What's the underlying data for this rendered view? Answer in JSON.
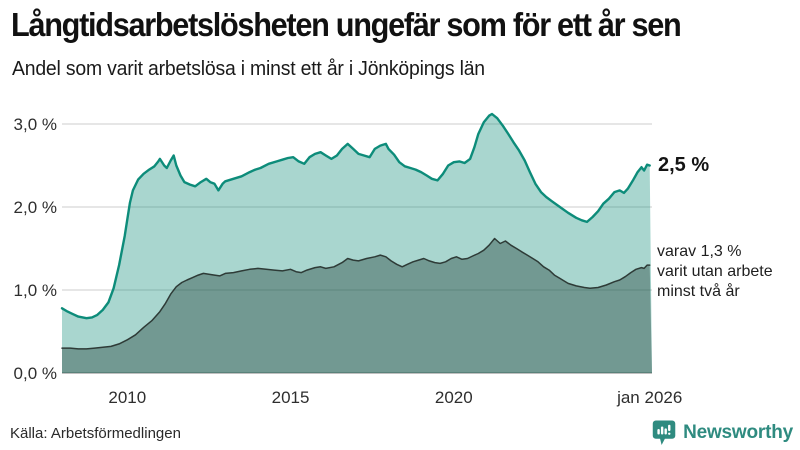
{
  "header": {
    "title": "Långtidsarbetslösheten ungefär som för ett år sen",
    "subtitle": "Andel som varit arbetslösa i minst ett år i Jönköpings län"
  },
  "footer": {
    "source": "Källa: Arbetsförmedlingen",
    "brand": "Newsworthy"
  },
  "colors": {
    "accent_teal": "#0d8c7a",
    "light_area_fill": "rgba(17,140,122,0.36)",
    "dark_area_fill": "rgba(32,63,56,0.40)",
    "dark_line": "#2e3b37",
    "gridline": "#d8d8d8",
    "baseline": "#9b9b9b",
    "tick_text": "#2e2e2e",
    "brand_teal": "#2f8b80"
  },
  "chart_data": {
    "type": "area",
    "title": "Långtidsarbetslösheten ungefär som för ett år sen",
    "subtitle": "Andel som varit arbetslösa i minst ett år i Jönköpings län",
    "unit": "%",
    "xlim": [
      2008,
      2026.05
    ],
    "ylim": [
      0,
      3.2
    ],
    "grid": true,
    "legend_position": "annotations-right",
    "y_ticks": [
      {
        "value": 3.0,
        "label": "3,0 %"
      },
      {
        "value": 2.0,
        "label": "2,0 %"
      },
      {
        "value": 1.0,
        "label": "1,0 %"
      },
      {
        "value": 0.0,
        "label": "0,0 %"
      }
    ],
    "x_ticks": [
      {
        "value": 2010,
        "label": "2010"
      },
      {
        "value": 2015,
        "label": "2015"
      },
      {
        "value": 2020,
        "label": "2020"
      },
      {
        "value": 2026,
        "label": "jan 2026"
      }
    ],
    "annotations": {
      "total_label": "2,5 %",
      "subset_lines": [
        "varav 1,3 %",
        "varit utan arbete",
        "minst två år"
      ]
    },
    "series": [
      {
        "name": "Arbetslösa minst ett år",
        "last_value": 2.5,
        "points": [
          [
            2008.0,
            0.78
          ],
          [
            2008.17,
            0.74
          ],
          [
            2008.33,
            0.71
          ],
          [
            2008.5,
            0.68
          ],
          [
            2008.75,
            0.66
          ],
          [
            2008.92,
            0.67
          ],
          [
            2009.08,
            0.7
          ],
          [
            2009.25,
            0.76
          ],
          [
            2009.42,
            0.85
          ],
          [
            2009.58,
            1.02
          ],
          [
            2009.75,
            1.3
          ],
          [
            2009.92,
            1.65
          ],
          [
            2010.0,
            1.85
          ],
          [
            2010.08,
            2.05
          ],
          [
            2010.17,
            2.2
          ],
          [
            2010.33,
            2.33
          ],
          [
            2010.5,
            2.4
          ],
          [
            2010.67,
            2.45
          ],
          [
            2010.83,
            2.49
          ],
          [
            2010.95,
            2.55
          ],
          [
            2011.0,
            2.58
          ],
          [
            2011.13,
            2.5
          ],
          [
            2011.21,
            2.47
          ],
          [
            2011.33,
            2.56
          ],
          [
            2011.42,
            2.62
          ],
          [
            2011.5,
            2.5
          ],
          [
            2011.63,
            2.38
          ],
          [
            2011.75,
            2.3
          ],
          [
            2011.92,
            2.27
          ],
          [
            2012.08,
            2.25
          ],
          [
            2012.25,
            2.3
          ],
          [
            2012.42,
            2.34
          ],
          [
            2012.54,
            2.3
          ],
          [
            2012.67,
            2.28
          ],
          [
            2012.79,
            2.2
          ],
          [
            2012.92,
            2.28
          ],
          [
            2013.0,
            2.31
          ],
          [
            2013.25,
            2.34
          ],
          [
            2013.5,
            2.37
          ],
          [
            2013.75,
            2.42
          ],
          [
            2013.92,
            2.45
          ],
          [
            2014.08,
            2.47
          ],
          [
            2014.33,
            2.52
          ],
          [
            2014.58,
            2.55
          ],
          [
            2014.75,
            2.57
          ],
          [
            2014.92,
            2.59
          ],
          [
            2015.08,
            2.6
          ],
          [
            2015.25,
            2.55
          ],
          [
            2015.42,
            2.52
          ],
          [
            2015.58,
            2.6
          ],
          [
            2015.75,
            2.64
          ],
          [
            2015.92,
            2.66
          ],
          [
            2016.08,
            2.62
          ],
          [
            2016.25,
            2.58
          ],
          [
            2016.42,
            2.62
          ],
          [
            2016.58,
            2.7
          ],
          [
            2016.75,
            2.76
          ],
          [
            2016.92,
            2.7
          ],
          [
            2017.08,
            2.64
          ],
          [
            2017.25,
            2.62
          ],
          [
            2017.42,
            2.6
          ],
          [
            2017.58,
            2.7
          ],
          [
            2017.75,
            2.74
          ],
          [
            2017.92,
            2.76
          ],
          [
            2018.0,
            2.7
          ],
          [
            2018.17,
            2.63
          ],
          [
            2018.33,
            2.54
          ],
          [
            2018.5,
            2.49
          ],
          [
            2018.67,
            2.47
          ],
          [
            2018.83,
            2.45
          ],
          [
            2019.0,
            2.42
          ],
          [
            2019.17,
            2.38
          ],
          [
            2019.33,
            2.34
          ],
          [
            2019.5,
            2.32
          ],
          [
            2019.67,
            2.4
          ],
          [
            2019.83,
            2.5
          ],
          [
            2020.0,
            2.54
          ],
          [
            2020.17,
            2.55
          ],
          [
            2020.33,
            2.53
          ],
          [
            2020.5,
            2.58
          ],
          [
            2020.63,
            2.72
          ],
          [
            2020.75,
            2.88
          ],
          [
            2020.92,
            3.02
          ],
          [
            2021.08,
            3.1
          ],
          [
            2021.17,
            3.12
          ],
          [
            2021.33,
            3.07
          ],
          [
            2021.5,
            2.98
          ],
          [
            2021.67,
            2.88
          ],
          [
            2021.83,
            2.78
          ],
          [
            2022.0,
            2.68
          ],
          [
            2022.17,
            2.56
          ],
          [
            2022.33,
            2.42
          ],
          [
            2022.5,
            2.28
          ],
          [
            2022.67,
            2.18
          ],
          [
            2022.83,
            2.12
          ],
          [
            2023.0,
            2.07
          ],
          [
            2023.25,
            2.0
          ],
          [
            2023.5,
            1.93
          ],
          [
            2023.75,
            1.87
          ],
          [
            2023.92,
            1.84
          ],
          [
            2024.08,
            1.82
          ],
          [
            2024.25,
            1.88
          ],
          [
            2024.42,
            1.95
          ],
          [
            2024.58,
            2.04
          ],
          [
            2024.75,
            2.1
          ],
          [
            2024.92,
            2.18
          ],
          [
            2025.08,
            2.2
          ],
          [
            2025.21,
            2.17
          ],
          [
            2025.33,
            2.22
          ],
          [
            2025.5,
            2.33
          ],
          [
            2025.63,
            2.42
          ],
          [
            2025.75,
            2.48
          ],
          [
            2025.83,
            2.44
          ],
          [
            2025.92,
            2.51
          ],
          [
            2026.0,
            2.5
          ]
        ]
      },
      {
        "name": "Arbetslösa minst två år",
        "last_value": 1.3,
        "points": [
          [
            2008.0,
            0.3
          ],
          [
            2008.25,
            0.3
          ],
          [
            2008.5,
            0.29
          ],
          [
            2008.75,
            0.29
          ],
          [
            2009.0,
            0.3
          ],
          [
            2009.25,
            0.31
          ],
          [
            2009.5,
            0.32
          ],
          [
            2009.75,
            0.35
          ],
          [
            2010.0,
            0.4
          ],
          [
            2010.25,
            0.46
          ],
          [
            2010.5,
            0.55
          ],
          [
            2010.75,
            0.63
          ],
          [
            2011.0,
            0.74
          ],
          [
            2011.17,
            0.84
          ],
          [
            2011.33,
            0.95
          ],
          [
            2011.5,
            1.04
          ],
          [
            2011.67,
            1.09
          ],
          [
            2011.83,
            1.12
          ],
          [
            2012.0,
            1.15
          ],
          [
            2012.17,
            1.18
          ],
          [
            2012.33,
            1.2
          ],
          [
            2012.5,
            1.19
          ],
          [
            2012.67,
            1.18
          ],
          [
            2012.83,
            1.17
          ],
          [
            2013.0,
            1.2
          ],
          [
            2013.25,
            1.21
          ],
          [
            2013.5,
            1.23
          ],
          [
            2013.75,
            1.25
          ],
          [
            2014.0,
            1.26
          ],
          [
            2014.25,
            1.25
          ],
          [
            2014.5,
            1.24
          ],
          [
            2014.75,
            1.23
          ],
          [
            2015.0,
            1.25
          ],
          [
            2015.17,
            1.22
          ],
          [
            2015.33,
            1.21
          ],
          [
            2015.5,
            1.24
          ],
          [
            2015.75,
            1.27
          ],
          [
            2015.92,
            1.28
          ],
          [
            2016.08,
            1.26
          ],
          [
            2016.33,
            1.28
          ],
          [
            2016.58,
            1.33
          ],
          [
            2016.75,
            1.38
          ],
          [
            2016.92,
            1.36
          ],
          [
            2017.08,
            1.35
          ],
          [
            2017.33,
            1.38
          ],
          [
            2017.58,
            1.4
          ],
          [
            2017.75,
            1.42
          ],
          [
            2017.92,
            1.4
          ],
          [
            2018.08,
            1.35
          ],
          [
            2018.25,
            1.31
          ],
          [
            2018.42,
            1.28
          ],
          [
            2018.58,
            1.31
          ],
          [
            2018.75,
            1.34
          ],
          [
            2018.92,
            1.36
          ],
          [
            2019.08,
            1.38
          ],
          [
            2019.25,
            1.35
          ],
          [
            2019.42,
            1.33
          ],
          [
            2019.58,
            1.32
          ],
          [
            2019.75,
            1.34
          ],
          [
            2019.92,
            1.38
          ],
          [
            2020.08,
            1.4
          ],
          [
            2020.25,
            1.37
          ],
          [
            2020.42,
            1.38
          ],
          [
            2020.58,
            1.41
          ],
          [
            2020.75,
            1.44
          ],
          [
            2020.92,
            1.48
          ],
          [
            2021.08,
            1.54
          ],
          [
            2021.25,
            1.62
          ],
          [
            2021.42,
            1.56
          ],
          [
            2021.58,
            1.59
          ],
          [
            2021.75,
            1.54
          ],
          [
            2021.92,
            1.5
          ],
          [
            2022.08,
            1.46
          ],
          [
            2022.25,
            1.42
          ],
          [
            2022.42,
            1.38
          ],
          [
            2022.58,
            1.34
          ],
          [
            2022.75,
            1.28
          ],
          [
            2022.92,
            1.24
          ],
          [
            2023.08,
            1.18
          ],
          [
            2023.25,
            1.14
          ],
          [
            2023.5,
            1.08
          ],
          [
            2023.75,
            1.05
          ],
          [
            2024.0,
            1.03
          ],
          [
            2024.17,
            1.02
          ],
          [
            2024.42,
            1.03
          ],
          [
            2024.67,
            1.06
          ],
          [
            2024.92,
            1.1
          ],
          [
            2025.08,
            1.12
          ],
          [
            2025.25,
            1.16
          ],
          [
            2025.42,
            1.21
          ],
          [
            2025.58,
            1.25
          ],
          [
            2025.75,
            1.27
          ],
          [
            2025.83,
            1.26
          ],
          [
            2025.92,
            1.3
          ],
          [
            2026.0,
            1.3
          ]
        ]
      }
    ]
  }
}
